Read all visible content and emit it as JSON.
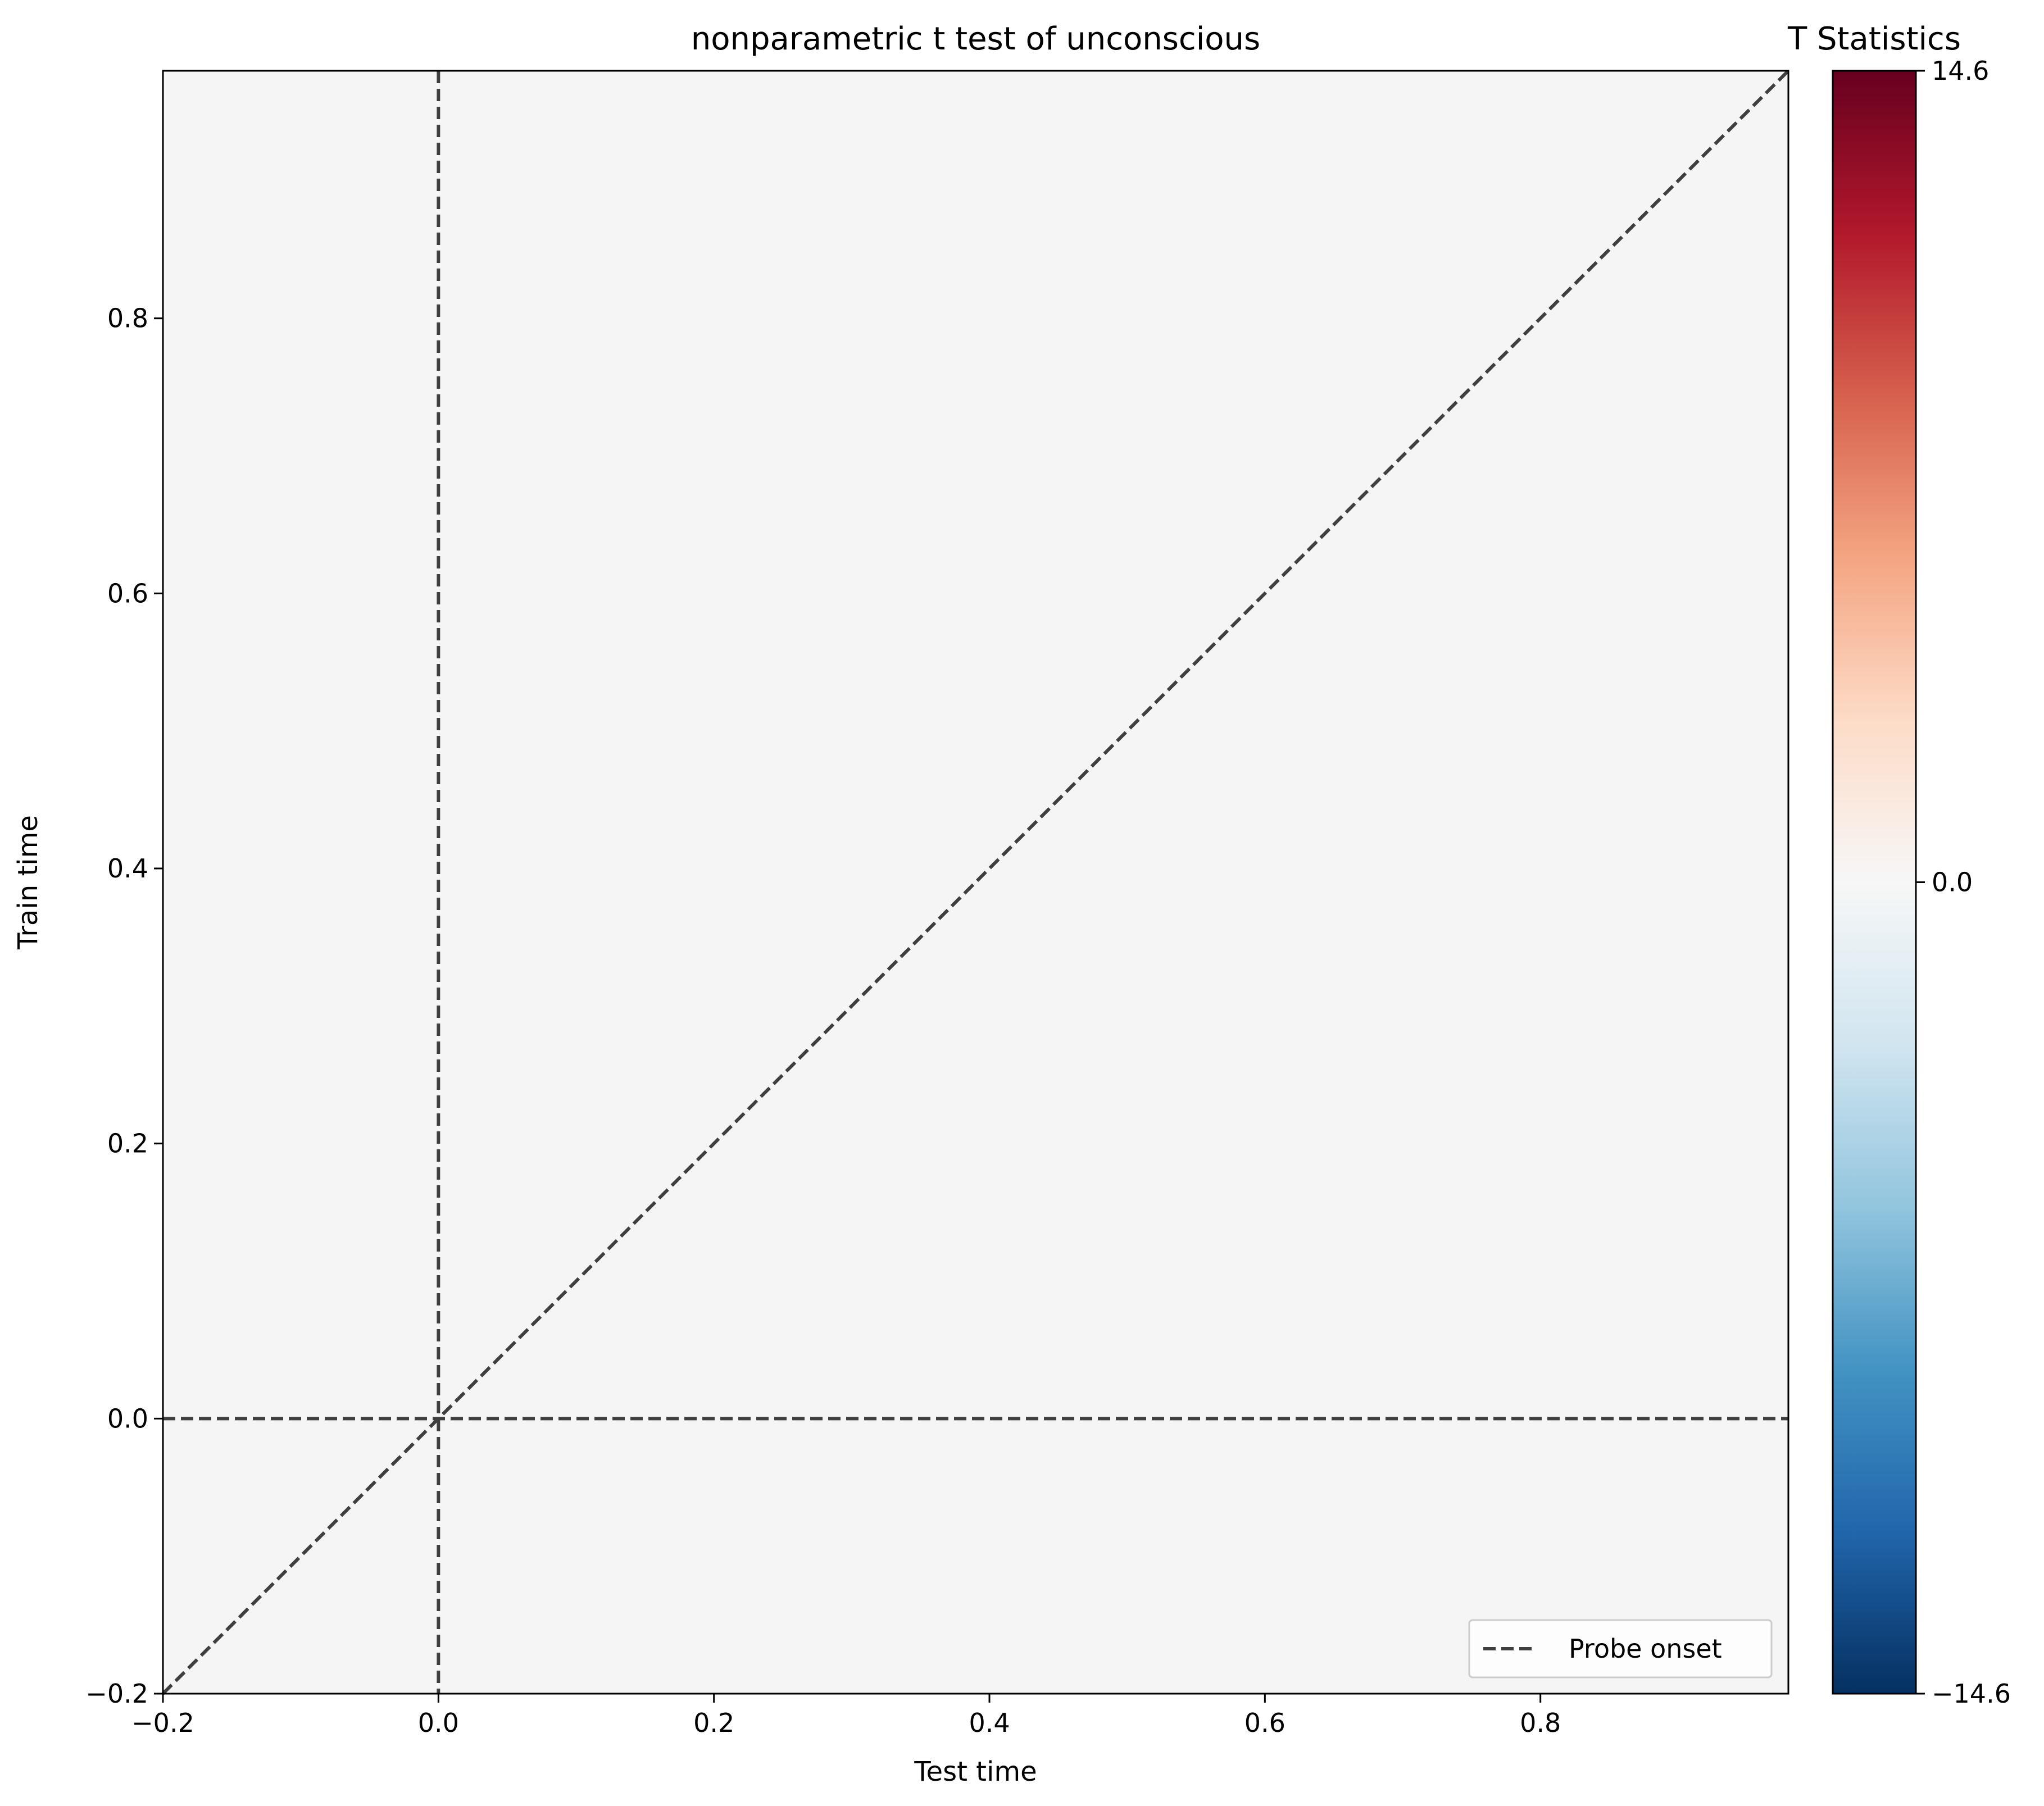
{
  "chart_data": {
    "type": "heatmap",
    "title": "nonparametric t test of unconscious",
    "xlabel": "Test time",
    "ylabel": "Train time",
    "xlim": [
      -0.2,
      0.98
    ],
    "ylim": [
      -0.2,
      0.98
    ],
    "xticks": [
      -0.2,
      0.0,
      0.2,
      0.4,
      0.6,
      0.8
    ],
    "xtick_labels": [
      "−0.2",
      "0.0",
      "0.2",
      "0.4",
      "0.6",
      "0.8"
    ],
    "yticks": [
      -0.2,
      0.0,
      0.2,
      0.4,
      0.6,
      0.8
    ],
    "ytick_labels": [
      "−0.2",
      "0.0",
      "0.2",
      "0.4",
      "0.6",
      "0.8"
    ],
    "heatmap_value": 0.0,
    "heatmap_color": "#f5f5f5",
    "colormap": "RdBu_r",
    "colorbar": {
      "title": "T Statistics",
      "vmin": -14.6,
      "vmax": 14.6,
      "ticks": [
        -14.6,
        0.0,
        14.6
      ],
      "tick_labels": [
        "−14.6",
        "0.0",
        "14.6"
      ],
      "colors": [
        "#053061",
        "#2166ac",
        "#4393c3",
        "#92c5de",
        "#d1e5f0",
        "#f7f7f7",
        "#fddbc7",
        "#f4a582",
        "#d6604d",
        "#b2182b",
        "#67001f"
      ]
    },
    "reference_lines": [
      {
        "kind": "vertical",
        "x": 0.0
      },
      {
        "kind": "horizontal",
        "y": 0.0
      },
      {
        "kind": "diagonal",
        "from": [
          -0.2,
          -0.2
        ],
        "to": [
          0.98,
          0.98
        ]
      }
    ],
    "line_color": "#3f3f3f",
    "legend": {
      "position": "lower-right",
      "entries": [
        {
          "label": "Probe onset",
          "style": "dashed"
        }
      ]
    },
    "grid": false
  }
}
